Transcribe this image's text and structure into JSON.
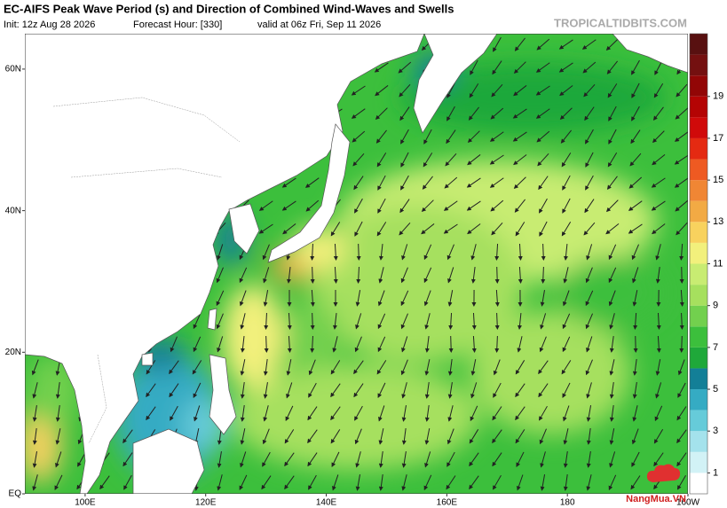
{
  "header": {
    "title": "EC-AIFS Peak Wave Period (s) and Direction of Combined Wind-Waves and Swells",
    "init": "Init: 12z Aug 28 2026",
    "forecast_hour": "Forecast Hour: [330]",
    "valid": "valid at 06z Fri, Sep 11 2026",
    "source": "TROPICALTIDBITS.COM"
  },
  "map": {
    "lonlim": [
      90,
      200
    ],
    "latlim": [
      0,
      65
    ],
    "lat_ticks": [
      {
        "value": 60,
        "label": "60N"
      },
      {
        "value": 40,
        "label": "40N"
      },
      {
        "value": 20,
        "label": "20N"
      },
      {
        "value": 0,
        "label": "EQ"
      }
    ],
    "lon_ticks": [
      {
        "value": 100,
        "label": "100E"
      },
      {
        "value": 120,
        "label": "120E"
      },
      {
        "value": 140,
        "label": "140E"
      },
      {
        "value": 160,
        "label": "160E"
      },
      {
        "value": 180,
        "label": "180"
      },
      {
        "value": 200,
        "label": "160W"
      }
    ]
  },
  "colorbar": {
    "lim": [
      0,
      22
    ],
    "ticks": [
      1,
      3,
      5,
      7,
      9,
      11,
      13,
      15,
      17,
      19
    ],
    "colors": [
      "#ffffff",
      "#d2f2f6",
      "#a4e2ec",
      "#66cbd9",
      "#35abc3",
      "#137f97",
      "#1fa83a",
      "#3cbf3c",
      "#72d04e",
      "#a6e05e",
      "#c8ec72",
      "#f2f07c",
      "#f8d25e",
      "#f2aa44",
      "#f08634",
      "#ee5a22",
      "#e42a12",
      "#d00a0a",
      "#b40404",
      "#920606",
      "#741010",
      "#581010"
    ]
  },
  "watermark": "NangMua.VN"
}
